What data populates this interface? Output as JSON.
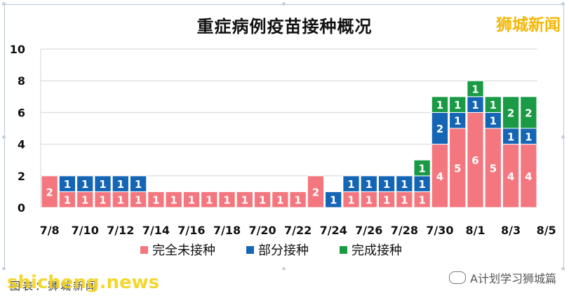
{
  "header": {
    "title": "重症病例疫苗接种概况",
    "brand": "狮城新闻"
  },
  "footer": {
    "caption": "图表：狮城新闻",
    "watermark": "shicheng.news",
    "account": "A计划学习狮城篇"
  },
  "chart_data": {
    "type": "bar",
    "stacked": true,
    "title": "重症病例疫苗接种概况",
    "ylim": [
      0,
      10
    ],
    "yticks": [
      "0",
      "2",
      "4",
      "6",
      "8",
      "10"
    ],
    "xtick_labels": [
      "7/8",
      "7/10",
      "7/12",
      "7/14",
      "7/16",
      "7/18",
      "7/20",
      "7/22",
      "7/24",
      "7/26",
      "7/28",
      "7/30",
      "8/1",
      "8/3",
      "8/5"
    ],
    "categories": [
      "7/8",
      "7/9",
      "7/10",
      "7/11",
      "7/12",
      "7/13",
      "7/14",
      "7/15",
      "7/16",
      "7/17",
      "7/18",
      "7/19",
      "7/20",
      "7/21",
      "7/22",
      "7/23",
      "7/24",
      "7/25",
      "7/26",
      "7/27",
      "7/28",
      "7/29",
      "7/30",
      "7/31",
      "8/1",
      "8/2",
      "8/3",
      "8/4"
    ],
    "series": [
      {
        "name": "完全未接种",
        "color": "#f4777f",
        "values": [
          2,
          1,
          1,
          1,
          1,
          1,
          1,
          1,
          1,
          1,
          1,
          1,
          1,
          1,
          1,
          2,
          0,
          1,
          1,
          1,
          1,
          1,
          4,
          5,
          6,
          5,
          4,
          4
        ]
      },
      {
        "name": "部分接种",
        "color": "#1565b5",
        "values": [
          0,
          1,
          1,
          1,
          1,
          1,
          0,
          0,
          0,
          0,
          0,
          0,
          0,
          0,
          0,
          0,
          1,
          1,
          1,
          1,
          1,
          1,
          2,
          1,
          1,
          1,
          1,
          1
        ]
      },
      {
        "name": "完成接种",
        "color": "#1a9a45",
        "values": [
          0,
          0,
          0,
          0,
          0,
          0,
          0,
          0,
          0,
          0,
          0,
          0,
          0,
          0,
          0,
          0,
          0,
          0,
          0,
          0,
          0,
          1,
          1,
          1,
          1,
          1,
          2,
          2
        ]
      }
    ],
    "grid": true,
    "legend_position": "bottom"
  }
}
